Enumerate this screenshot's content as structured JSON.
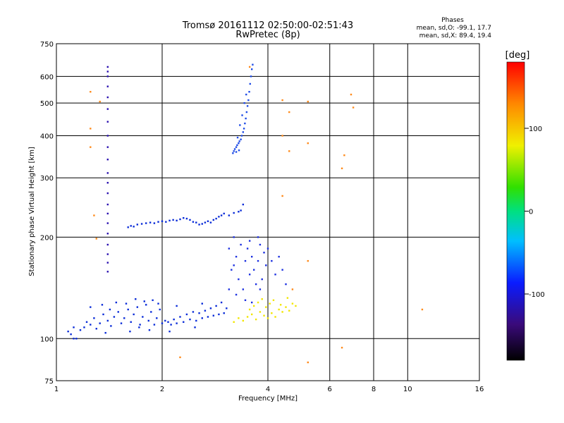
{
  "header": {
    "title_line1": "Tromsø 20161112 02:50:00-02:51:43",
    "title_line2": "RwPretec (8p)"
  },
  "phases_box": {
    "heading": "Phases",
    "line_o": "mean, sd,O: -99.1, 17.7",
    "line_x": "mean, sd,X:  89.4, 19.4"
  },
  "colorbar": {
    "unit_label": "[deg]",
    "tick_labels": [
      "100",
      "0",
      "-100"
    ],
    "ticks": [
      100,
      0,
      -100
    ],
    "range": [
      -180,
      180
    ]
  },
  "chart_data": {
    "type": "scatter",
    "xlabel": "Frequency [MHz]",
    "ylabel": "Stationary phase Virtual Height [km]",
    "xscale": "log",
    "yscale": "log",
    "xlim": [
      1,
      16
    ],
    "ylim": [
      75,
      750
    ],
    "x_ticks": [
      1,
      2,
      4,
      6,
      8,
      10,
      16
    ],
    "x_tick_labels": [
      "1",
      "2",
      "4",
      "6",
      "8",
      "10",
      "16"
    ],
    "y_ticks": [
      75,
      100,
      200,
      300,
      400,
      500,
      600,
      750
    ],
    "y_tick_labels": [
      "75",
      "100",
      "200",
      "300",
      "400",
      "500",
      "600",
      "750"
    ],
    "grid": true,
    "color_mapping": "phase in degrees",
    "series": [
      {
        "id": "E-layer / low F trace",
        "color": "#0a2cd8",
        "points": [
          [
            1.08,
            105
          ],
          [
            1.1,
            103
          ],
          [
            1.12,
            100
          ],
          [
            1.14,
            100
          ],
          [
            1.17,
            106
          ],
          [
            1.2,
            108
          ],
          [
            1.22,
            112
          ],
          [
            1.25,
            110
          ],
          [
            1.28,
            115
          ],
          [
            1.3,
            107
          ],
          [
            1.33,
            111
          ],
          [
            1.36,
            118
          ],
          [
            1.4,
            113
          ],
          [
            1.43,
            109
          ],
          [
            1.46,
            116
          ],
          [
            1.5,
            120
          ],
          [
            1.53,
            111
          ],
          [
            1.56,
            115
          ],
          [
            1.6,
            122
          ],
          [
            1.63,
            112
          ],
          [
            1.66,
            118
          ],
          [
            1.7,
            124
          ],
          [
            1.73,
            110
          ],
          [
            1.76,
            116
          ],
          [
            1.8,
            126
          ],
          [
            1.83,
            113
          ],
          [
            1.86,
            120
          ],
          [
            1.9,
            110
          ],
          [
            1.93,
            115
          ],
          [
            1.97,
            122
          ],
          [
            2.0,
            111
          ],
          [
            2.04,
            113
          ],
          [
            2.08,
            112
          ],
          [
            2.12,
            110
          ],
          [
            2.16,
            114
          ],
          [
            2.2,
            111
          ],
          [
            2.25,
            116
          ],
          [
            2.3,
            112
          ],
          [
            2.35,
            118
          ],
          [
            2.4,
            114
          ],
          [
            2.45,
            120
          ],
          [
            2.5,
            113
          ],
          [
            2.55,
            119
          ],
          [
            2.6,
            115
          ],
          [
            2.65,
            121
          ],
          [
            2.7,
            116
          ],
          [
            2.75,
            123
          ],
          [
            2.8,
            117
          ],
          [
            2.85,
            125
          ],
          [
            2.9,
            118
          ],
          [
            2.95,
            128
          ],
          [
            3.0,
            119
          ],
          [
            3.05,
            123
          ],
          [
            1.35,
            126
          ],
          [
            1.48,
            128
          ],
          [
            1.58,
            127
          ],
          [
            1.68,
            131
          ],
          [
            1.78,
            129
          ],
          [
            1.88,
            130
          ],
          [
            1.95,
            127
          ],
          [
            1.62,
            105
          ],
          [
            1.72,
            108
          ],
          [
            2.1,
            105
          ],
          [
            2.2,
            125
          ],
          [
            2.6,
            127
          ],
          [
            1.25,
            124
          ],
          [
            1.38,
            104
          ],
          [
            1.84,
            106
          ],
          [
            2.48,
            108
          ],
          [
            1.12,
            108
          ],
          [
            1.42,
            122
          ]
        ]
      },
      {
        "id": "Vertical streak at 1.4 MHz",
        "color": "#2a10b0",
        "points": [
          [
            1.4,
            640
          ],
          [
            1.4,
            620
          ],
          [
            1.4,
            600
          ],
          [
            1.4,
            560
          ],
          [
            1.4,
            520
          ],
          [
            1.4,
            480
          ],
          [
            1.4,
            440
          ],
          [
            1.4,
            400
          ],
          [
            1.4,
            370
          ],
          [
            1.4,
            340
          ],
          [
            1.4,
            310
          ],
          [
            1.4,
            290
          ],
          [
            1.4,
            270
          ],
          [
            1.4,
            250
          ],
          [
            1.4,
            235
          ],
          [
            1.4,
            220
          ],
          [
            1.4,
            205
          ],
          [
            1.4,
            190
          ],
          [
            1.4,
            178
          ],
          [
            1.4,
            168
          ],
          [
            1.4,
            158
          ]
        ]
      },
      {
        "id": "F trace (~220 km)",
        "color": "#0a2cd8",
        "points": [
          [
            1.6,
            214
          ],
          [
            1.63,
            216
          ],
          [
            1.66,
            215
          ],
          [
            1.7,
            218
          ],
          [
            1.75,
            219
          ],
          [
            1.8,
            220
          ],
          [
            1.85,
            221
          ],
          [
            1.9,
            220
          ],
          [
            1.95,
            222
          ],
          [
            2.0,
            223
          ],
          [
            2.05,
            222
          ],
          [
            2.1,
            224
          ],
          [
            2.15,
            225
          ],
          [
            2.2,
            224
          ],
          [
            2.25,
            226
          ],
          [
            2.3,
            228
          ],
          [
            2.35,
            227
          ],
          [
            2.4,
            225
          ],
          [
            2.45,
            222
          ],
          [
            2.5,
            221
          ],
          [
            2.55,
            218
          ],
          [
            2.6,
            219
          ],
          [
            2.65,
            221
          ],
          [
            2.7,
            223
          ],
          [
            2.75,
            221
          ],
          [
            2.8,
            225
          ],
          [
            2.85,
            227
          ],
          [
            2.9,
            230
          ],
          [
            2.95,
            232
          ],
          [
            3.0,
            235
          ],
          [
            3.1,
            232
          ],
          [
            3.2,
            236
          ],
          [
            3.3,
            238
          ],
          [
            3.35,
            240
          ],
          [
            3.4,
            250
          ]
        ]
      },
      {
        "id": "F2 cusp (350-650 km)",
        "color": "#1f4ce6",
        "points": [
          [
            3.18,
            355
          ],
          [
            3.2,
            360
          ],
          [
            3.22,
            365
          ],
          [
            3.25,
            370
          ],
          [
            3.27,
            375
          ],
          [
            3.3,
            380
          ],
          [
            3.32,
            385
          ],
          [
            3.35,
            390
          ],
          [
            3.37,
            400
          ],
          [
            3.4,
            410
          ],
          [
            3.42,
            420
          ],
          [
            3.44,
            435
          ],
          [
            3.46,
            450
          ],
          [
            3.48,
            470
          ],
          [
            3.5,
            490
          ],
          [
            3.52,
            510
          ],
          [
            3.54,
            540
          ],
          [
            3.56,
            570
          ],
          [
            3.58,
            600
          ],
          [
            3.6,
            630
          ],
          [
            3.62,
            650
          ],
          [
            3.28,
            395
          ],
          [
            3.33,
            430
          ],
          [
            3.38,
            460
          ],
          [
            3.43,
            500
          ],
          [
            3.47,
            530
          ],
          [
            3.25,
            358
          ],
          [
            3.31,
            362
          ]
        ]
      },
      {
        "id": "Upper scatter cloud 3-4.5 MHz",
        "color": "#1c30e0",
        "points": [
          [
            3.1,
            185
          ],
          [
            3.15,
            160
          ],
          [
            3.2,
            200
          ],
          [
            3.25,
            175
          ],
          [
            3.3,
            150
          ],
          [
            3.35,
            190
          ],
          [
            3.4,
            140
          ],
          [
            3.45,
            170
          ],
          [
            3.5,
            185
          ],
          [
            3.55,
            155
          ],
          [
            3.6,
            175
          ],
          [
            3.65,
            160
          ],
          [
            3.7,
            145
          ],
          [
            3.75,
            170
          ],
          [
            3.8,
            190
          ],
          [
            3.85,
            150
          ],
          [
            3.9,
            180
          ],
          [
            3.95,
            165
          ],
          [
            4.0,
            185
          ],
          [
            4.1,
            170
          ],
          [
            4.2,
            155
          ],
          [
            4.3,
            175
          ],
          [
            4.4,
            160
          ],
          [
            4.5,
            145
          ],
          [
            3.1,
            140
          ],
          [
            3.25,
            135
          ],
          [
            3.45,
            130
          ],
          [
            3.6,
            128
          ],
          [
            3.8,
            140
          ],
          [
            3.2,
            165
          ],
          [
            3.55,
            195
          ],
          [
            3.75,
            200
          ]
        ]
      },
      {
        "id": "Yellow X-mode cluster",
        "color": "#f2e600",
        "points": [
          [
            3.2,
            112
          ],
          [
            3.3,
            115
          ],
          [
            3.4,
            113
          ],
          [
            3.5,
            116
          ],
          [
            3.6,
            118
          ],
          [
            3.7,
            114
          ],
          [
            3.8,
            120
          ],
          [
            3.9,
            117
          ],
          [
            4.0,
            115
          ],
          [
            4.1,
            119
          ],
          [
            4.2,
            116
          ],
          [
            4.3,
            122
          ],
          [
            4.4,
            120
          ],
          [
            4.5,
            124
          ],
          [
            4.6,
            121
          ],
          [
            4.7,
            127
          ],
          [
            4.8,
            125
          ],
          [
            3.55,
            122
          ],
          [
            3.75,
            128
          ],
          [
            3.95,
            124
          ],
          [
            4.15,
            130
          ],
          [
            4.35,
            126
          ],
          [
            4.55,
            132
          ],
          [
            3.65,
            125
          ],
          [
            3.85,
            131
          ],
          [
            4.05,
            127
          ]
        ]
      },
      {
        "id": "Isolated echoes",
        "color": "#ff8a1a",
        "points": [
          [
            1.25,
            540
          ],
          [
            1.33,
            505
          ],
          [
            3.55,
            640
          ],
          [
            4.4,
            510
          ],
          [
            4.6,
            470
          ],
          [
            5.2,
            505
          ],
          [
            6.9,
            530
          ],
          [
            7.0,
            485
          ],
          [
            1.25,
            420
          ],
          [
            1.25,
            370
          ],
          [
            1.28,
            232
          ],
          [
            1.3,
            198
          ],
          [
            4.4,
            400
          ],
          [
            4.6,
            360
          ],
          [
            5.2,
            380
          ],
          [
            6.6,
            350
          ],
          [
            6.5,
            320
          ],
          [
            4.4,
            265
          ],
          [
            11.0,
            122
          ],
          [
            4.7,
            140
          ],
          [
            5.2,
            170
          ],
          [
            2.25,
            88
          ],
          [
            6.5,
            94
          ],
          [
            5.2,
            85
          ]
        ]
      }
    ]
  }
}
